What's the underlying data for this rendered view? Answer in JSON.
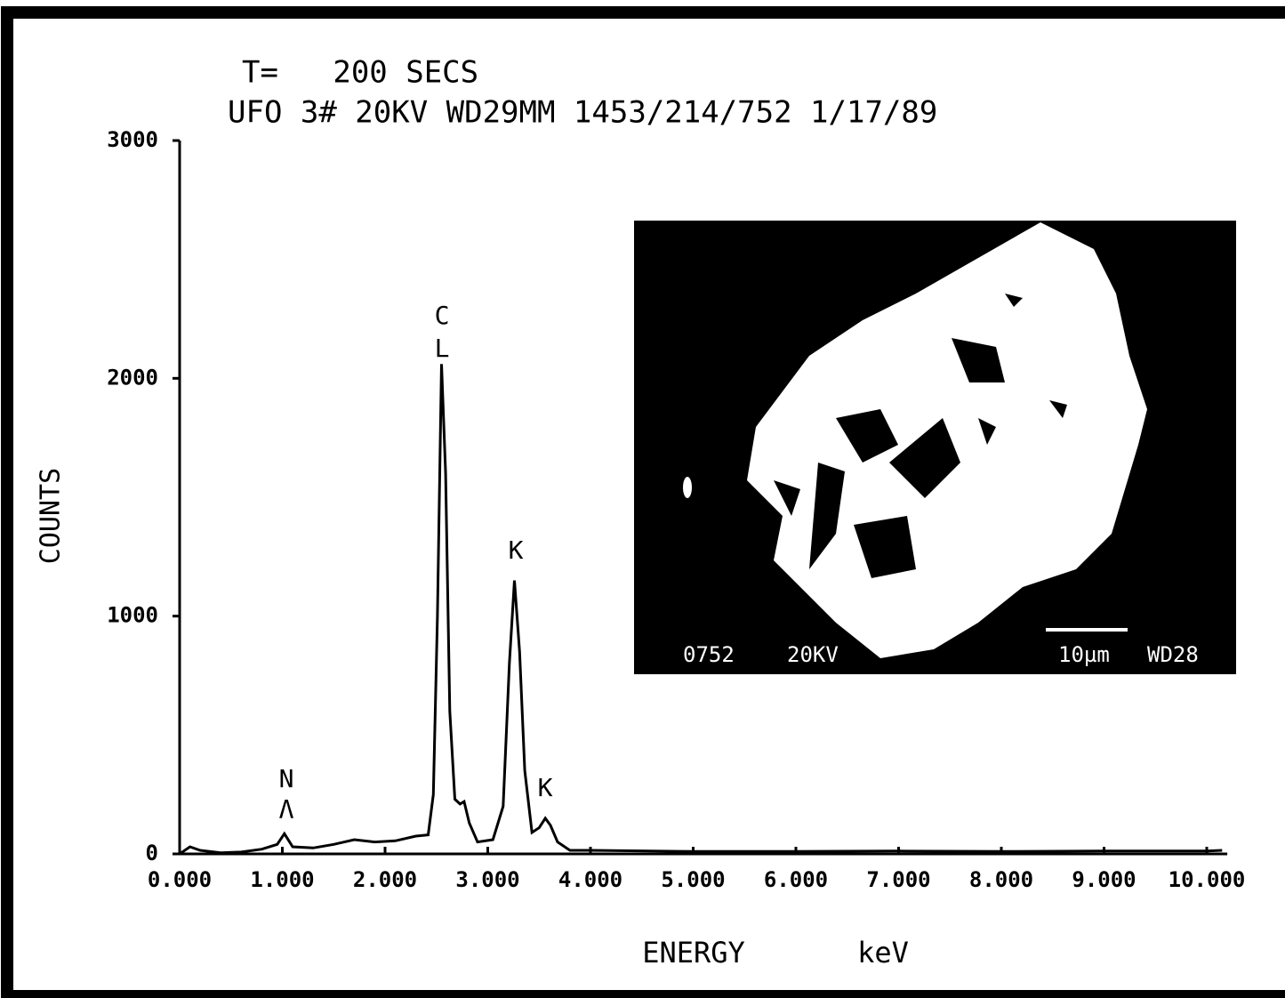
{
  "chart_data": {
    "type": "line",
    "title": "T=   200 SECS",
    "subtitle": "UFO 3# 20KV WD29MM 1453/214/752 1/17/89",
    "ylabel": "COUNTS",
    "xlabel": "ENERGY",
    "xunit": "keV",
    "color": "#000000",
    "x": [
      0.0,
      0.1,
      0.2,
      0.4,
      0.6,
      0.8,
      0.95,
      1.02,
      1.1,
      1.3,
      1.5,
      1.7,
      1.9,
      2.1,
      2.3,
      2.42,
      2.47,
      2.51,
      2.55,
      2.59,
      2.63,
      2.68,
      2.73,
      2.77,
      2.82,
      2.9,
      3.05,
      3.15,
      3.21,
      3.26,
      3.31,
      3.36,
      3.43,
      3.5,
      3.56,
      3.61,
      3.68,
      3.8,
      4.0,
      5.0,
      6.0,
      7.0,
      8.0,
      9.0,
      10.0,
      10.15
    ],
    "values": [
      0,
      30,
      15,
      5,
      8,
      20,
      40,
      85,
      30,
      25,
      40,
      60,
      50,
      55,
      75,
      80,
      250,
      1000,
      2060,
      1600,
      600,
      230,
      210,
      220,
      130,
      50,
      60,
      200,
      800,
      1150,
      850,
      350,
      90,
      110,
      150,
      120,
      50,
      15,
      15,
      10,
      10,
      12,
      10,
      12,
      12,
      15
    ],
    "xlim": [
      0,
      10.2
    ],
    "ylim": [
      0,
      3000
    ],
    "xticks": [
      {
        "value": 0,
        "label": "0.000"
      },
      {
        "value": 1,
        "label": "1.000"
      },
      {
        "value": 2,
        "label": "2.000"
      },
      {
        "value": 3,
        "label": "3.000"
      },
      {
        "value": 4,
        "label": "4.000"
      },
      {
        "value": 5,
        "label": "5.000"
      },
      {
        "value": 6,
        "label": "6.000"
      },
      {
        "value": 7,
        "label": "7.000"
      },
      {
        "value": 8,
        "label": "8.000"
      },
      {
        "value": 9,
        "label": "9.000"
      },
      {
        "value": 10,
        "label": "10.000"
      }
    ],
    "yticks": [
      0,
      1000,
      2000,
      3000
    ],
    "annotations": [
      "C",
      "L",
      "K",
      "N",
      "Λ",
      "K"
    ],
    "inset": {
      "sample": "0752",
      "voltage": "20KV",
      "scale": "10µm",
      "working_distance": "WD28"
    }
  }
}
